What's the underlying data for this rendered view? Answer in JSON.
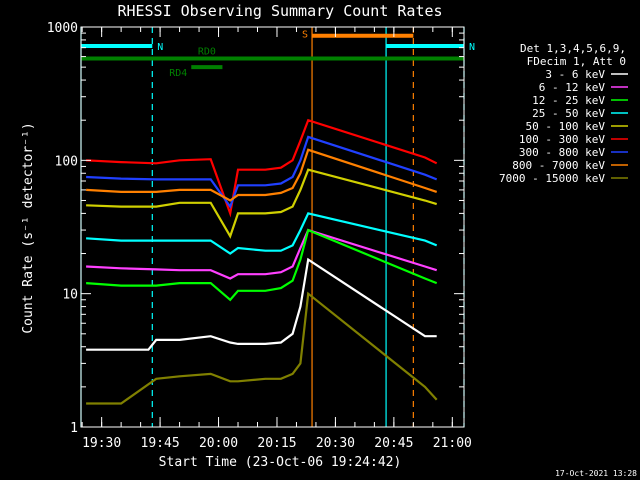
{
  "chart_data": {
    "type": "line",
    "title": "RHESSI Observing Summary Count Rates",
    "xlabel": "Start Time (23-Oct-06 19:24:42)",
    "ylabel": "Count Rate (s⁻¹ detector⁻¹)",
    "y_scale": "log",
    "ylim": [
      1,
      1000
    ],
    "xlim": [
      "19:24:42",
      "21:03:00"
    ],
    "x_ticks": [
      "19:30",
      "19:45",
      "20:00",
      "20:15",
      "20:30",
      "20:45",
      "21:00"
    ],
    "y_ticks": [
      "1",
      "10",
      "100",
      "1000"
    ],
    "footer": "17-Oct-2021 13:28",
    "legend_position": "right",
    "legend_header": [
      "Det 1,3,4,5,6,9,",
      "FDecim 1, Att 0"
    ],
    "series": [
      {
        "name": "3 - 6 keV",
        "color": "#ffffff",
        "x": [
          "19:26",
          "19:35",
          "19:42",
          "19:44",
          "19:50",
          "19:58",
          "20:03",
          "20:05",
          "20:12",
          "20:16",
          "20:19",
          "20:21",
          "20:23",
          "20:53",
          "20:56"
        ],
        "y": [
          3.8,
          3.8,
          3.8,
          4.5,
          4.5,
          4.8,
          4.3,
          4.2,
          4.2,
          4.3,
          5,
          8,
          18,
          4.8,
          4.8
        ]
      },
      {
        "name": "6 - 12 keV",
        "color": "#ff40ff",
        "x": [
          "19:26",
          "19:35",
          "19:44",
          "19:50",
          "19:58",
          "20:03",
          "20:05",
          "20:12",
          "20:16",
          "20:19",
          "20:21",
          "20:23",
          "20:53",
          "20:56"
        ],
        "y": [
          16,
          15.5,
          15.2,
          15,
          15,
          13,
          14,
          14,
          14.5,
          16,
          22,
          30,
          16,
          15
        ]
      },
      {
        "name": "12 - 25 keV",
        "color": "#00ff00",
        "x": [
          "19:26",
          "19:35",
          "19:44",
          "19:50",
          "19:58",
          "20:03",
          "20:05",
          "20:12",
          "20:16",
          "20:19",
          "20:21",
          "20:23",
          "20:53",
          "20:56"
        ],
        "y": [
          12,
          11.5,
          11.5,
          12,
          12,
          9,
          10.5,
          10.5,
          11,
          12.5,
          18,
          30,
          13,
          12
        ]
      },
      {
        "name": "25 - 50 keV",
        "color": "#00ffff",
        "x": [
          "19:26",
          "19:35",
          "19:44",
          "19:50",
          "19:58",
          "20:03",
          "20:05",
          "20:12",
          "20:16",
          "20:19",
          "20:21",
          "20:23",
          "20:53",
          "20:56"
        ],
        "y": [
          26,
          25,
          25,
          25,
          25,
          20,
          22,
          21,
          21,
          23,
          30,
          40,
          25,
          23
        ]
      },
      {
        "name": "50 - 100 keV",
        "color": "#d0d000",
        "x": [
          "19:26",
          "19:35",
          "19:44",
          "19:50",
          "19:58",
          "20:03",
          "20:05",
          "20:12",
          "20:16",
          "20:19",
          "20:21",
          "20:23",
          "20:53",
          "20:56"
        ],
        "y": [
          46,
          45,
          45,
          48,
          48,
          27,
          40,
          40,
          41,
          45,
          60,
          85,
          50,
          47
        ]
      },
      {
        "name": "100 - 300 keV",
        "color": "#ff0000",
        "x": [
          "19:26",
          "19:35",
          "19:44",
          "19:50",
          "19:58",
          "20:03",
          "20:05",
          "20:12",
          "20:16",
          "20:19",
          "20:21",
          "20:23",
          "20:53",
          "20:56"
        ],
        "y": [
          100,
          97,
          95,
          100,
          102,
          40,
          85,
          85,
          88,
          100,
          140,
          200,
          105,
          95
        ]
      },
      {
        "name": "300 - 800 keV",
        "color": "#2040ff",
        "x": [
          "19:26",
          "19:35",
          "19:44",
          "19:50",
          "19:58",
          "20:03",
          "20:05",
          "20:12",
          "20:16",
          "20:19",
          "20:21",
          "20:23",
          "20:53",
          "20:56"
        ],
        "y": [
          75,
          73,
          72,
          72,
          72,
          45,
          65,
          65,
          67,
          75,
          100,
          150,
          78,
          72
        ]
      },
      {
        "name": "800 - 7000 keV",
        "color": "#ff8000",
        "x": [
          "19:26",
          "19:35",
          "19:44",
          "19:50",
          "19:58",
          "20:03",
          "20:05",
          "20:12",
          "20:16",
          "20:19",
          "20:21",
          "20:23",
          "20:53",
          "20:56"
        ],
        "y": [
          60,
          58,
          58,
          60,
          60,
          50,
          55,
          55,
          57,
          62,
          80,
          120,
          62,
          58
        ]
      },
      {
        "name": "7000 - 15000 keV",
        "color": "#808000",
        "x": [
          "19:26",
          "19:35",
          "19:44",
          "19:50",
          "19:58",
          "20:03",
          "20:05",
          "20:12",
          "20:16",
          "20:19",
          "20:21",
          "20:23",
          "20:53",
          "20:56"
        ],
        "y": [
          1.5,
          1.5,
          2.3,
          2.4,
          2.5,
          2.2,
          2.2,
          2.3,
          2.3,
          2.5,
          3,
          10,
          2,
          1.6
        ]
      }
    ],
    "annotations": {
      "bars": [
        {
          "label": "N",
          "color": "#00ffff",
          "from": "19:24:42",
          "to": "19:43:00",
          "level": 720
        },
        {
          "label": "N",
          "color": "#00ffff",
          "from": "20:43:00",
          "to": "21:03:00",
          "level": 720
        },
        {
          "label": "S",
          "color": "#ff8000",
          "from": "20:24:00",
          "to": "20:50:00",
          "level": 860
        },
        {
          "label": "RD0",
          "color": "#008000",
          "from": "19:24:42",
          "to": "21:03:00",
          "level": 580
        },
        {
          "label": "RD4",
          "color": "#008000",
          "from": "19:53:00",
          "to": "20:01:00",
          "level": 500
        }
      ],
      "vlines": [
        {
          "at": "19:24:42",
          "color": "#00ffff",
          "style": "solid"
        },
        {
          "at": "19:43:00",
          "color": "#00ffff",
          "style": "dashed"
        },
        {
          "at": "20:24:00",
          "color": "#ff8000",
          "style": "solid"
        },
        {
          "at": "20:43:00",
          "color": "#00ffff",
          "style": "solid"
        },
        {
          "at": "20:50:00",
          "color": "#ff8000",
          "style": "dashed"
        },
        {
          "at": "21:03:00",
          "color": "#00ffff",
          "style": "dashed"
        }
      ]
    }
  }
}
